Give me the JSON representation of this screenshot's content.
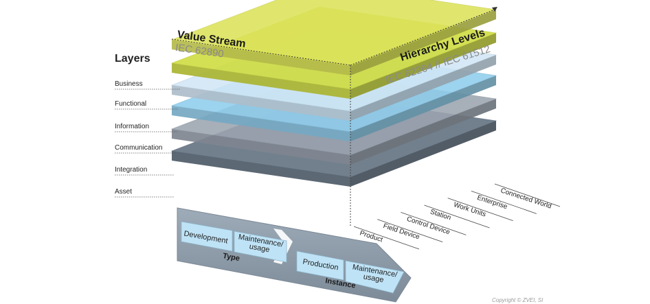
{
  "title_left": "Value Stream",
  "subtitle_left": "IEC 62890",
  "title_right": "Hierarchy Levels",
  "subtitle_right": "IEC 62264 // IEC 61512",
  "layers_heading": "Layers",
  "layers": [
    {
      "label": "Business",
      "color": "#dce35a"
    },
    {
      "label": "Functional",
      "color": "#cfdc3c"
    },
    {
      "label": "Information",
      "color": "#d2e7f6"
    },
    {
      "label": "Communication",
      "color": "#8fcdec"
    },
    {
      "label": "Integration",
      "color": "#9ba4b0"
    },
    {
      "label": "Asset",
      "color": "#5f6f7f"
    }
  ],
  "hierarchy_levels": [
    "Connected World",
    "Enterprise",
    "Work Units",
    "Station",
    "Control Device",
    "Field Device",
    "Product"
  ],
  "value_stream": {
    "type_label": "Type",
    "instance_label": "Instance",
    "type_items": [
      "Development",
      "Maintenance/\nusage"
    ],
    "instance_items": [
      "Production",
      "Maintenance/\nusage"
    ]
  },
  "copyright": "Copyright © ZVEI, SI"
}
